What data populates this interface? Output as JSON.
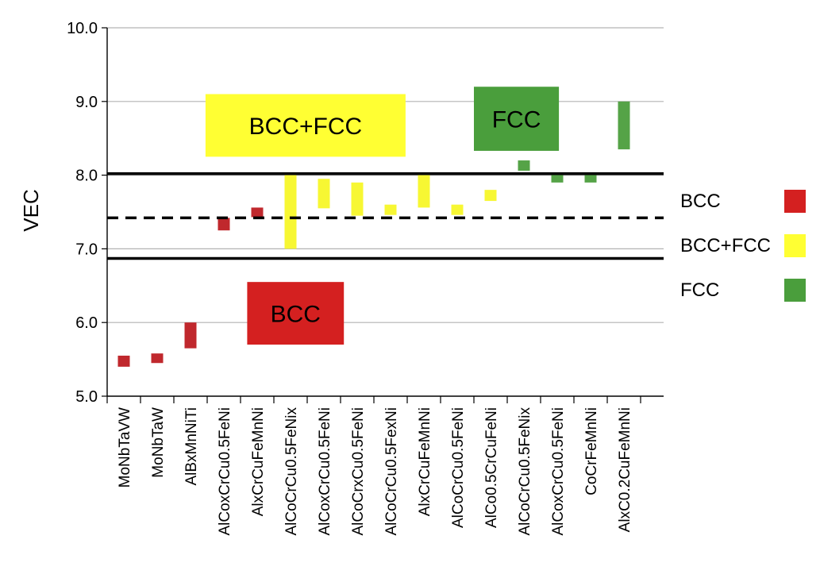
{
  "chart_data": {
    "type": "bar",
    "ylabel": "VEC",
    "xlabel": "",
    "ylim": [
      5.0,
      10.0
    ],
    "yticks": [
      "5.0",
      "6.0",
      "7.0",
      "8.0",
      "9.0",
      "10.0"
    ],
    "grid": true,
    "categories": [
      "MoNbTaVW",
      "MoNbTaW",
      "AlBxMnNiTi",
      "AlCoxCrCu0.5FeNi",
      "AlxCrCuFeMnNi",
      "AlCoCrCu0.5FeNix",
      "AlCoxCrCu0.5FeNi",
      "AlCoCrxCu0.5FeNi",
      "AlCoCrCu0.5FexNi",
      "AlxCrCuFeMnNi",
      "AlCoCrCu0.5FeNi",
      "AlCo0.5CrCuFeNi",
      "AlCoCrCu0.5FeNix",
      "AlCoxCrCu0.5FeNi",
      "CoCrFeMnNi",
      "AlxC0.2CuFeMnNi"
    ],
    "ranges": [
      {
        "low": 5.4,
        "high": 5.55,
        "phase": "BCC"
      },
      {
        "low": 5.45,
        "high": 5.58,
        "phase": "BCC"
      },
      {
        "low": 5.65,
        "high": 6.0,
        "phase": "BCC"
      },
      {
        "low": 7.25,
        "high": 7.42,
        "phase": "BCC"
      },
      {
        "low": 7.43,
        "high": 7.56,
        "phase": "BCC"
      },
      {
        "low": 7.0,
        "high": 8.0,
        "phase": "BCC+FCC"
      },
      {
        "low": 7.55,
        "high": 7.95,
        "phase": "BCC+FCC"
      },
      {
        "low": 7.45,
        "high": 7.9,
        "phase": "BCC+FCC"
      },
      {
        "low": 7.46,
        "high": 7.6,
        "phase": "BCC+FCC"
      },
      {
        "low": 7.56,
        "high": 8.0,
        "phase": "BCC+FCC"
      },
      {
        "low": 7.46,
        "high": 7.6,
        "phase": "BCC+FCC"
      },
      {
        "low": 7.65,
        "high": 7.8,
        "phase": "BCC+FCC"
      },
      {
        "low": 8.06,
        "high": 8.2,
        "phase": "FCC"
      },
      {
        "low": 7.9,
        "high": 8.03,
        "phase": "FCC"
      },
      {
        "low": 7.9,
        "high": 8.03,
        "phase": "FCC"
      },
      {
        "low": 8.35,
        "high": 9.0,
        "phase": "FCC"
      }
    ],
    "thresholds": [
      {
        "value": 8.02,
        "style": "solid"
      },
      {
        "value": 7.42,
        "style": "dashed"
      },
      {
        "value": 6.87,
        "style": "solid"
      }
    ],
    "regions": [
      {
        "label": "BCC+FCC",
        "phase": "BCC+FCC",
        "x0": 2.95,
        "x1": 8.95,
        "y0": 8.25,
        "y1": 9.1
      },
      {
        "label": "FCC",
        "phase": "FCC",
        "x0": 11.0,
        "x1": 13.55,
        "y0": 8.33,
        "y1": 9.2
      },
      {
        "label": "BCC",
        "phase": "BCC",
        "x0": 4.2,
        "x1": 7.1,
        "y0": 5.7,
        "y1": 6.55
      }
    ],
    "legend": {
      "position": "right",
      "entries": [
        {
          "label": "BCC",
          "phase": "BCC"
        },
        {
          "label": "BCC+FCC",
          "phase": "BCC+FCC"
        },
        {
          "label": "FCC",
          "phase": "FCC"
        }
      ]
    },
    "colors": {
      "BCC": "#d42020",
      "BCC_bar": "#c0282d",
      "BCC+FCC": "#ffff33",
      "BCC+FCC_bar": "#f7f733",
      "FCC": "#4a9e3c",
      "FCC_bar": "#55a347",
      "grid": "#b3b3b3"
    }
  }
}
